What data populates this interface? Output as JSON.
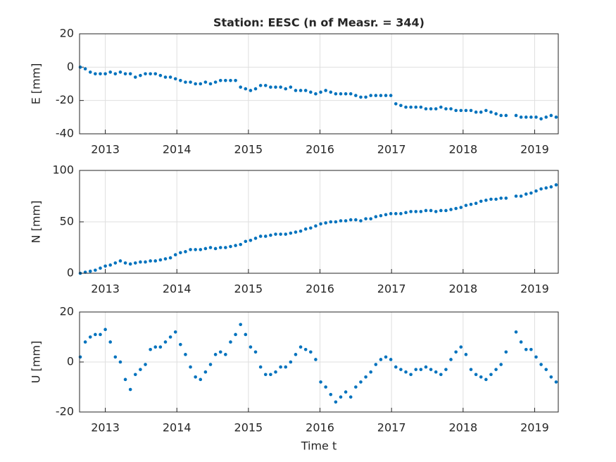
{
  "chart_data": [
    {
      "type": "scatter",
      "title": "Station: EESC (n of Measr. = 344)",
      "ylabel": "E [mm]",
      "color": "#0072bd",
      "grid": true,
      "xlim": [
        2012.64,
        2019.33
      ],
      "xticks": [
        2013,
        2014,
        2015,
        2016,
        2017,
        2018,
        2019
      ],
      "ylim": [
        -40,
        20
      ],
      "yticks": [
        -40,
        -20,
        0,
        20
      ],
      "x": [
        2012.65,
        2012.72,
        2012.79,
        2012.86,
        2012.93,
        2013.0,
        2013.07,
        2013.14,
        2013.21,
        2013.28,
        2013.35,
        2013.42,
        2013.49,
        2013.56,
        2013.63,
        2013.7,
        2013.77,
        2013.84,
        2013.91,
        2013.98,
        2014.05,
        2014.12,
        2014.19,
        2014.26,
        2014.33,
        2014.4,
        2014.47,
        2014.54,
        2014.61,
        2014.68,
        2014.75,
        2014.82,
        2014.89,
        2014.96,
        2015.03,
        2015.1,
        2015.17,
        2015.24,
        2015.31,
        2015.38,
        2015.45,
        2015.52,
        2015.59,
        2015.66,
        2015.73,
        2015.8,
        2015.87,
        2015.94,
        2016.01,
        2016.08,
        2016.15,
        2016.22,
        2016.29,
        2016.36,
        2016.43,
        2016.5,
        2016.57,
        2016.64,
        2016.71,
        2016.78,
        2016.85,
        2016.92,
        2016.99,
        2017.06,
        2017.13,
        2017.2,
        2017.27,
        2017.34,
        2017.41,
        2017.48,
        2017.55,
        2017.62,
        2017.69,
        2017.76,
        2017.83,
        2017.9,
        2017.97,
        2018.04,
        2018.11,
        2018.18,
        2018.25,
        2018.32,
        2018.39,
        2018.46,
        2018.53,
        2018.6,
        2018.74,
        2018.81,
        2018.88,
        2018.95,
        2019.02,
        2019.09,
        2019.16,
        2019.23,
        2019.3
      ],
      "values": [
        0,
        -1,
        -3,
        -4,
        -4,
        -4,
        -3,
        -4,
        -3,
        -4,
        -4,
        -6,
        -5,
        -4,
        -4,
        -4,
        -5,
        -6,
        -6,
        -7,
        -8,
        -9,
        -9,
        -10,
        -10,
        -9,
        -10,
        -9,
        -8,
        -8,
        -8,
        -8,
        -12,
        -13,
        -14,
        -13,
        -11,
        -11,
        -12,
        -12,
        -12,
        -13,
        -12,
        -14,
        -14,
        -14,
        -15,
        -16,
        -15,
        -14,
        -15,
        -16,
        -16,
        -16,
        -16,
        -17,
        -18,
        -18,
        -17,
        -17,
        -17,
        -17,
        -17,
        -22,
        -23,
        -24,
        -24,
        -24,
        -24,
        -25,
        -25,
        -25,
        -24,
        -25,
        -25,
        -26,
        -26,
        -26,
        -26,
        -27,
        -27,
        -26,
        -27,
        -28,
        -29,
        -29,
        -29,
        -30,
        -30,
        -30,
        -30,
        -31,
        -30,
        -29,
        -30
      ]
    },
    {
      "type": "scatter",
      "ylabel": "N [mm]",
      "color": "#0072bd",
      "grid": true,
      "xlim": [
        2012.64,
        2019.33
      ],
      "xticks": [
        2013,
        2014,
        2015,
        2016,
        2017,
        2018,
        2019
      ],
      "ylim": [
        0,
        100
      ],
      "yticks": [
        0,
        50,
        100
      ],
      "x": [
        2012.65,
        2012.72,
        2012.79,
        2012.86,
        2012.93,
        2013.0,
        2013.07,
        2013.14,
        2013.21,
        2013.28,
        2013.35,
        2013.42,
        2013.49,
        2013.56,
        2013.63,
        2013.7,
        2013.77,
        2013.84,
        2013.91,
        2013.98,
        2014.05,
        2014.12,
        2014.19,
        2014.26,
        2014.33,
        2014.4,
        2014.47,
        2014.54,
        2014.61,
        2014.68,
        2014.75,
        2014.82,
        2014.89,
        2014.96,
        2015.03,
        2015.1,
        2015.17,
        2015.24,
        2015.31,
        2015.38,
        2015.45,
        2015.52,
        2015.59,
        2015.66,
        2015.73,
        2015.8,
        2015.87,
        2015.94,
        2016.01,
        2016.08,
        2016.15,
        2016.22,
        2016.29,
        2016.36,
        2016.43,
        2016.5,
        2016.57,
        2016.64,
        2016.71,
        2016.78,
        2016.85,
        2016.92,
        2016.99,
        2017.06,
        2017.13,
        2017.2,
        2017.27,
        2017.34,
        2017.41,
        2017.48,
        2017.55,
        2017.62,
        2017.69,
        2017.76,
        2017.83,
        2017.9,
        2017.97,
        2018.04,
        2018.11,
        2018.18,
        2018.25,
        2018.32,
        2018.39,
        2018.46,
        2018.53,
        2018.6,
        2018.74,
        2018.81,
        2018.88,
        2018.95,
        2019.02,
        2019.09,
        2019.16,
        2019.23,
        2019.3
      ],
      "values": [
        0,
        1,
        2,
        3,
        5,
        7,
        8,
        10,
        12,
        10,
        9,
        10,
        11,
        11,
        12,
        12,
        13,
        14,
        15,
        18,
        20,
        21,
        23,
        23,
        23,
        24,
        25,
        24,
        25,
        25,
        26,
        27,
        28,
        31,
        32,
        34,
        36,
        36,
        37,
        38,
        38,
        38,
        39,
        40,
        41,
        43,
        44,
        46,
        48,
        49,
        50,
        50,
        51,
        51,
        52,
        52,
        51,
        53,
        53,
        55,
        56,
        57,
        58,
        58,
        58,
        59,
        60,
        60,
        60,
        61,
        61,
        60,
        61,
        61,
        62,
        63,
        64,
        66,
        67,
        68,
        70,
        71,
        72,
        72,
        73,
        73,
        75,
        75,
        77,
        78,
        80,
        82,
        83,
        84,
        86
      ]
    },
    {
      "type": "scatter",
      "ylabel": "U [mm]",
      "xlabel": "Time t",
      "color": "#0072bd",
      "grid": true,
      "xlim": [
        2012.64,
        2019.33
      ],
      "xticks": [
        2013,
        2014,
        2015,
        2016,
        2017,
        2018,
        2019
      ],
      "ylim": [
        -20,
        20
      ],
      "yticks": [
        -20,
        0,
        20
      ],
      "x": [
        2012.65,
        2012.72,
        2012.79,
        2012.86,
        2012.93,
        2013.0,
        2013.07,
        2013.14,
        2013.21,
        2013.28,
        2013.35,
        2013.42,
        2013.49,
        2013.56,
        2013.63,
        2013.7,
        2013.77,
        2013.84,
        2013.91,
        2013.98,
        2014.05,
        2014.12,
        2014.19,
        2014.26,
        2014.33,
        2014.4,
        2014.47,
        2014.54,
        2014.61,
        2014.68,
        2014.75,
        2014.82,
        2014.89,
        2014.96,
        2015.03,
        2015.1,
        2015.17,
        2015.24,
        2015.31,
        2015.38,
        2015.45,
        2015.52,
        2015.59,
        2015.66,
        2015.73,
        2015.8,
        2015.87,
        2015.94,
        2016.01,
        2016.08,
        2016.15,
        2016.22,
        2016.29,
        2016.36,
        2016.43,
        2016.5,
        2016.57,
        2016.64,
        2016.71,
        2016.78,
        2016.85,
        2016.92,
        2016.99,
        2017.06,
        2017.13,
        2017.2,
        2017.27,
        2017.34,
        2017.41,
        2017.48,
        2017.55,
        2017.62,
        2017.69,
        2017.76,
        2017.83,
        2017.9,
        2017.97,
        2018.04,
        2018.11,
        2018.18,
        2018.25,
        2018.32,
        2018.39,
        2018.46,
        2018.53,
        2018.6,
        2018.74,
        2018.81,
        2018.88,
        2018.95,
        2019.02,
        2019.09,
        2019.16,
        2019.23,
        2019.3
      ],
      "values": [
        2,
        8,
        10,
        11,
        11,
        13,
        8,
        2,
        0,
        -7,
        -11,
        -5,
        -3,
        -1,
        5,
        6,
        6,
        8,
        10,
        12,
        7,
        3,
        -2,
        -6,
        -7,
        -4,
        -1,
        3,
        4,
        3,
        8,
        11,
        15,
        11,
        6,
        4,
        -2,
        -5,
        -5,
        -4,
        -2,
        -2,
        0,
        3,
        6,
        5,
        4,
        1,
        -8,
        -10,
        -13,
        -16,
        -14,
        -12,
        -14,
        -10,
        -8,
        -6,
        -4,
        -1,
        1,
        2,
        1,
        -2,
        -3,
        -4,
        -5,
        -3,
        -3,
        -2,
        -3,
        -4,
        -5,
        -3,
        1,
        4,
        6,
        3,
        -3,
        -5,
        -6,
        -7,
        -5,
        -3,
        -1,
        4,
        12,
        8,
        5,
        5,
        2,
        -1,
        -3,
        -6,
        -8
      ]
    }
  ]
}
